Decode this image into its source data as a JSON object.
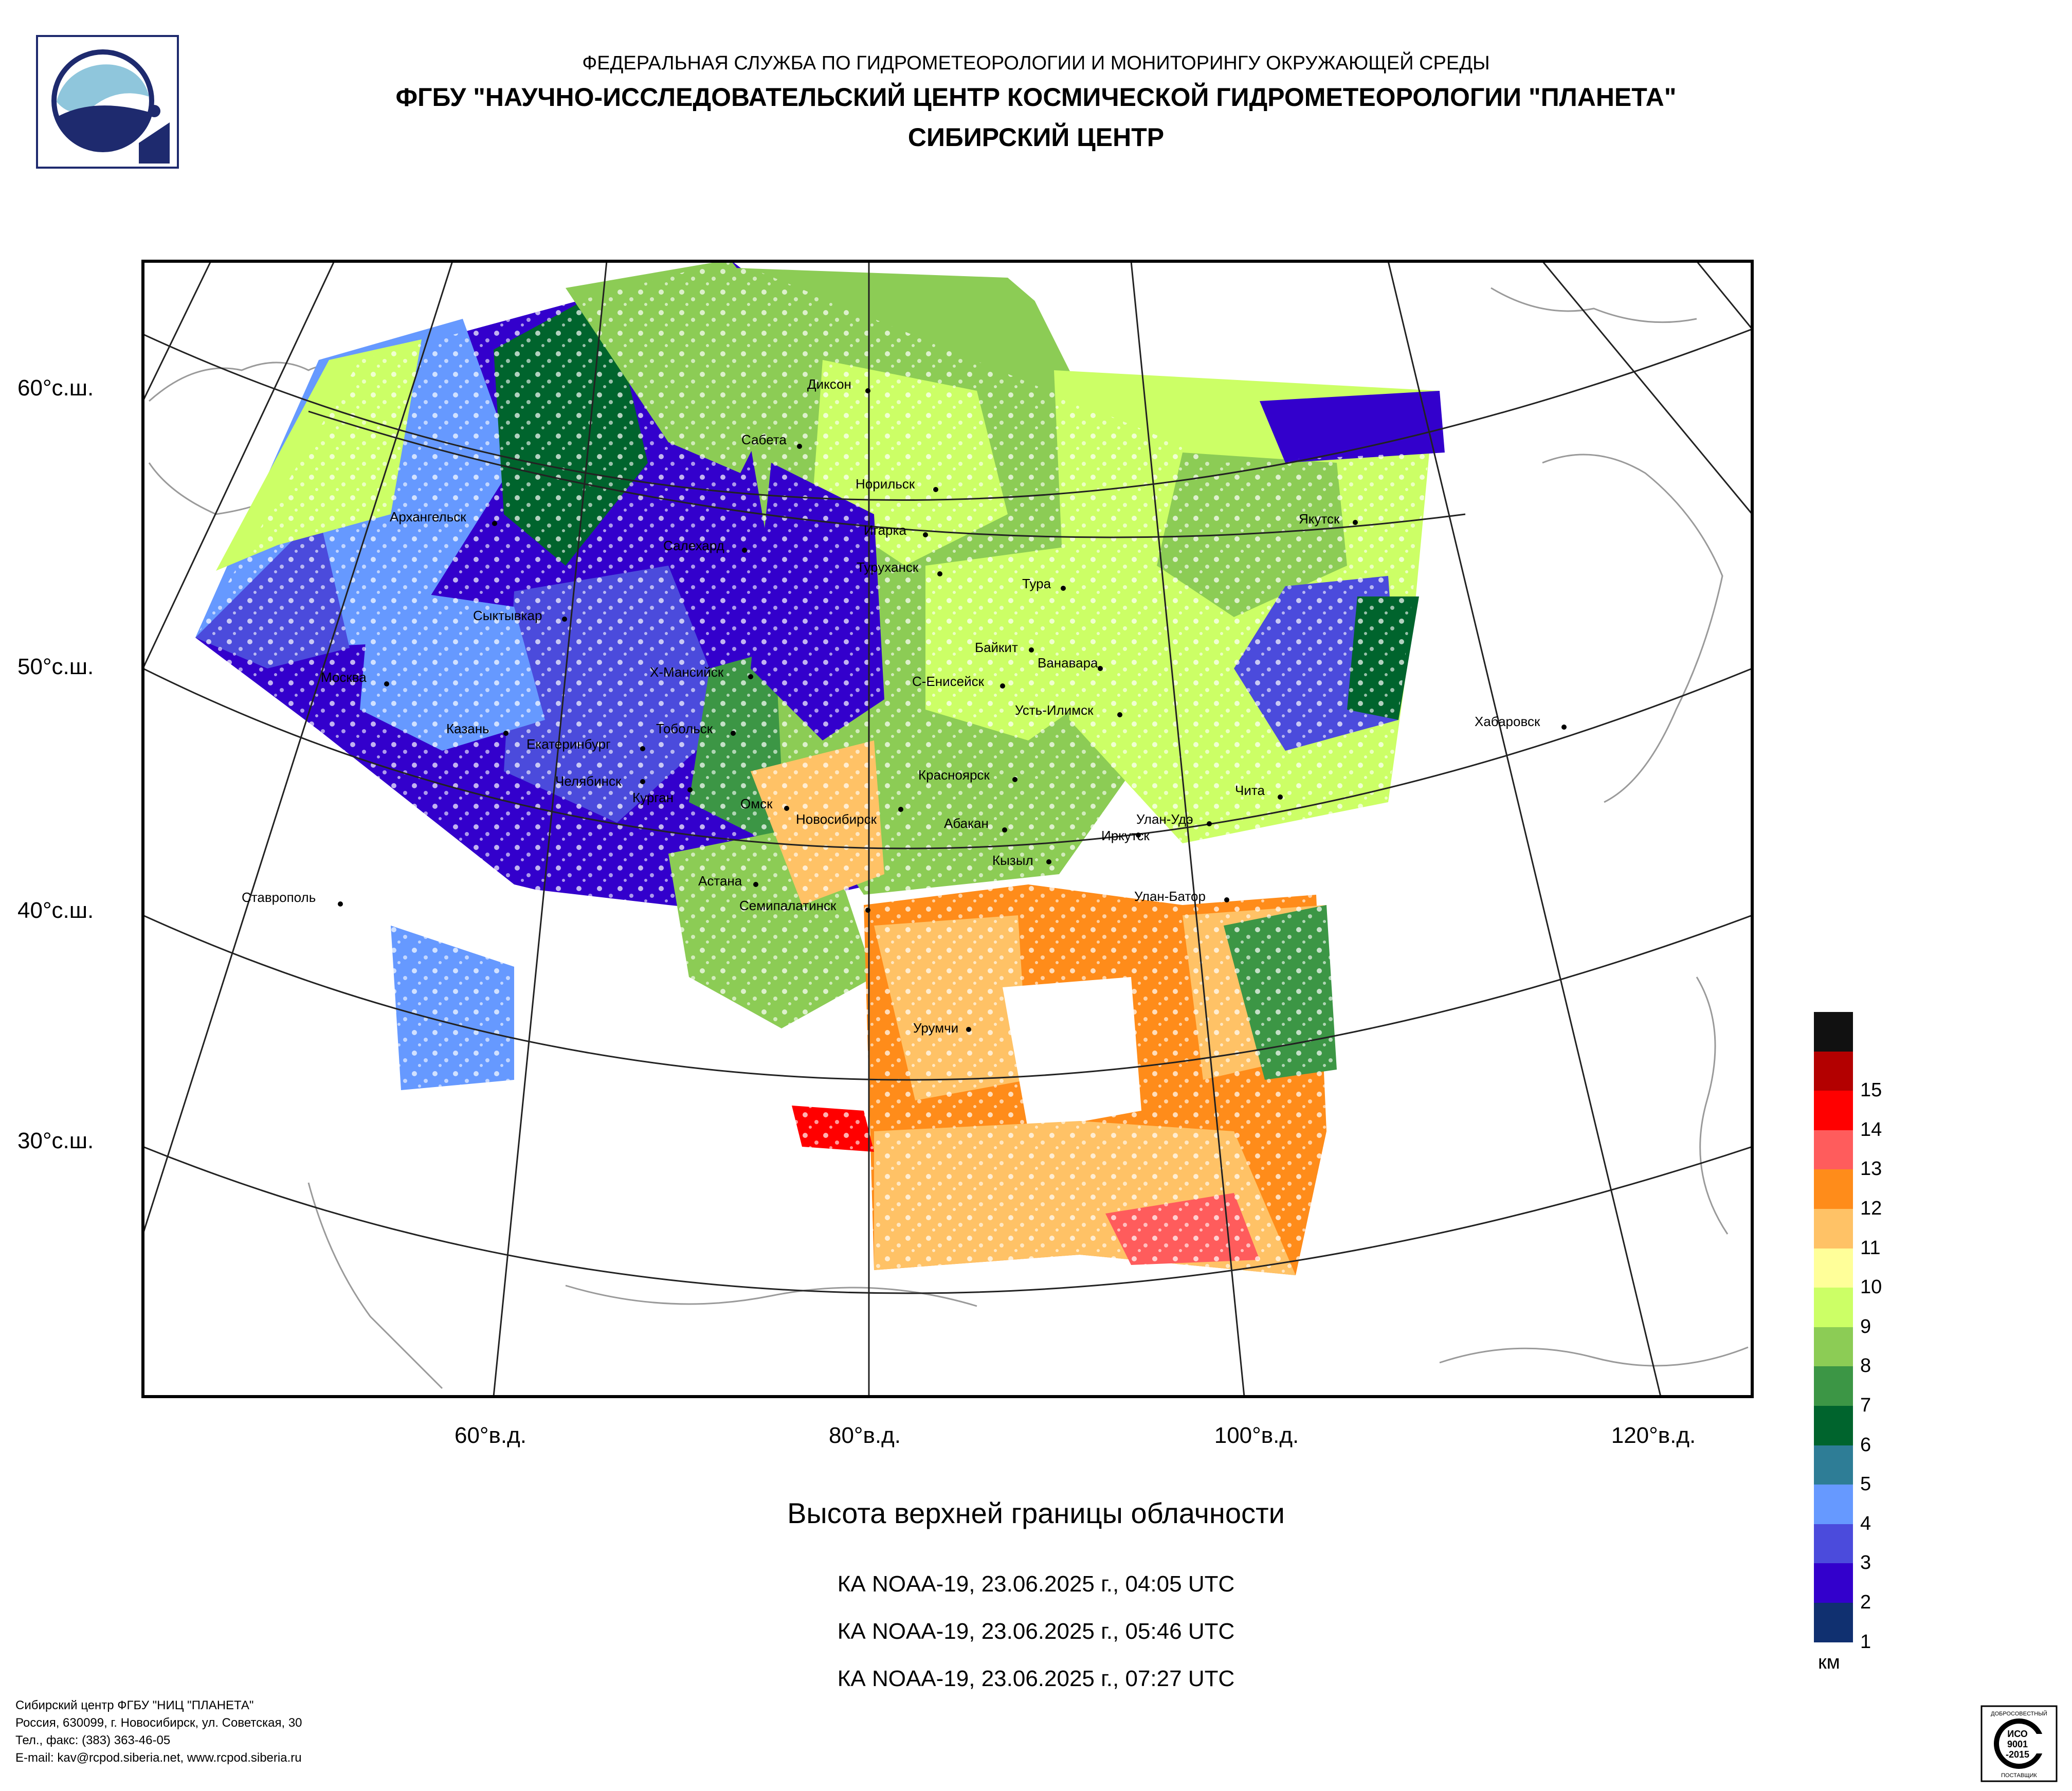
{
  "header": {
    "line1": "ФЕДЕРАЛЬНАЯ СЛУЖБА ПО ГИДРОМЕТЕОРОЛОГИИ И МОНИТОРИНГУ ОКРУЖАЮЩЕЙ СРЕДЫ",
    "line2": "ФГБУ \"НАУЧНО-ИССЛЕДОВАТЕЛЬСКИЙ ЦЕНТР КОСМИЧЕСКОЙ ГИДРОМЕТЕОРОЛОГИИ \"ПЛАНЕТА\"",
    "line3": "СИБИРСКИЙ ЦЕНТР"
  },
  "map": {
    "lat_labels": [
      "60°с.ш.",
      "50°с.ш.",
      "40°с.ш.",
      "30°с.ш."
    ],
    "lon_labels": [
      "60°в.д.",
      "80°в.д.",
      "100°в.д.",
      "120°в.д."
    ],
    "cities": [
      {
        "name": "Диксон"
      },
      {
        "name": "Сабета"
      },
      {
        "name": "Норильск"
      },
      {
        "name": "Игарка"
      },
      {
        "name": "Архангельск"
      },
      {
        "name": "Салехард"
      },
      {
        "name": "Туруханск"
      },
      {
        "name": "Тура"
      },
      {
        "name": "Якутск"
      },
      {
        "name": "Сыктывкар"
      },
      {
        "name": "Байкит"
      },
      {
        "name": "Ванавара"
      },
      {
        "name": "Москва"
      },
      {
        "name": "Х-Мансийск"
      },
      {
        "name": "С-Енисейск"
      },
      {
        "name": "Усть-Илимск"
      },
      {
        "name": "Хабаровск"
      },
      {
        "name": "Казань"
      },
      {
        "name": "Тобольск"
      },
      {
        "name": "Екатеринбург"
      },
      {
        "name": "Красноярск"
      },
      {
        "name": "Челябинск"
      },
      {
        "name": "Курган"
      },
      {
        "name": "Чита"
      },
      {
        "name": "Омск"
      },
      {
        "name": "Новосибирск"
      },
      {
        "name": "Абакан"
      },
      {
        "name": "Улан-Удэ"
      },
      {
        "name": "Иркутск"
      },
      {
        "name": "Кызыл"
      },
      {
        "name": "Ставрополь"
      },
      {
        "name": "Астана"
      },
      {
        "name": "Семипалатинск"
      },
      {
        "name": "Улан-Батор"
      },
      {
        "name": "Урумчи"
      }
    ]
  },
  "title": "Высота верхней границы облачности",
  "passes": [
    "КА NOAA-19, 23.06.2025 г., 04:05 UTC",
    "КА NOAA-19, 23.06.2025 г., 05:46 UTC",
    "КА NOAA-19, 23.06.2025 г., 07:27 UTC"
  ],
  "legend": {
    "unit": "км",
    "levels": [
      {
        "label": "",
        "color": "#111111"
      },
      {
        "label": "15",
        "color": "#b30000"
      },
      {
        "label": "14",
        "color": "#ff0000"
      },
      {
        "label": "13",
        "color": "#ff5c5c"
      },
      {
        "label": "12",
        "color": "#ff8c1a"
      },
      {
        "label": "11",
        "color": "#ffc266"
      },
      {
        "label": "10",
        "color": "#ffff99"
      },
      {
        "label": "9",
        "color": "#ccff66"
      },
      {
        "label": "8",
        "color": "#8ccc55"
      },
      {
        "label": "7",
        "color": "#3c9645"
      },
      {
        "label": "6",
        "color": "#00642d"
      },
      {
        "label": "5",
        "color": "#2e7d96"
      },
      {
        "label": "4",
        "color": "#6699ff"
      },
      {
        "label": "3",
        "color": "#4b4bdc"
      },
      {
        "label": "2",
        "color": "#3300cc"
      },
      {
        "label": "1",
        "color": "#103070"
      }
    ]
  },
  "footer": {
    "line1": "Сибирский центр ФГБУ \"НИЦ \"ПЛАНЕТА\"",
    "line2": "Россия, 630099, г. Новосибирск, ул. Советская, 30",
    "line3": "Тел., факс: (383) 363-46-05",
    "line4": "E-mail: kav@rcpod.siberia.net, www.rcpod.siberia.ru"
  },
  "cert": {
    "top": "ДОБРОСОВЕСТНЫЙ",
    "mid1": "ИСО",
    "mid2": "9001",
    "mid3": "-2015",
    "bottom": "ПОСТАВЩИК"
  }
}
